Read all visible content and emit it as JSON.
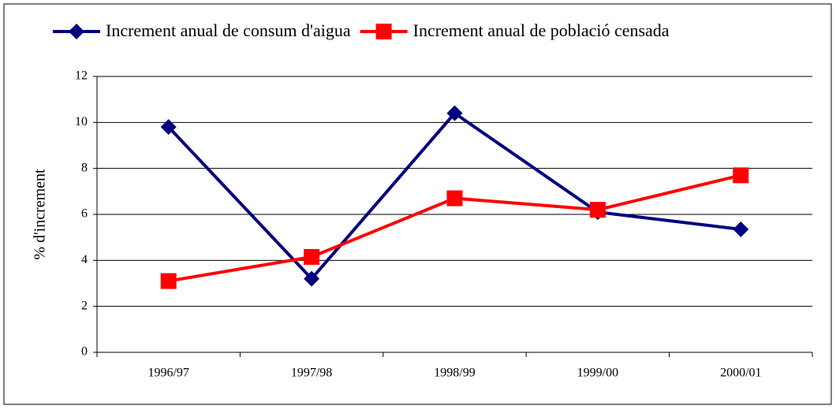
{
  "chart_data": {
    "type": "line",
    "y_label": "% d'increment",
    "categories": [
      "1996/97",
      "1997/98",
      "1998/99",
      "1999/00",
      "2000/01"
    ],
    "series": [
      {
        "name": "Increment anual de consum d'aigua",
        "color": "#000080",
        "marker": "diamond",
        "values": [
          9.8,
          3.2,
          10.4,
          6.1,
          5.35
        ]
      },
      {
        "name": "Increment anual de població censada",
        "color": "#ff0000",
        "marker": "square",
        "values": [
          3.1,
          4.15,
          6.7,
          6.2,
          7.7
        ]
      }
    ],
    "ylim": [
      0,
      12
    ],
    "yticks": [
      0,
      2,
      4,
      6,
      8,
      10,
      12
    ],
    "grid": true
  }
}
